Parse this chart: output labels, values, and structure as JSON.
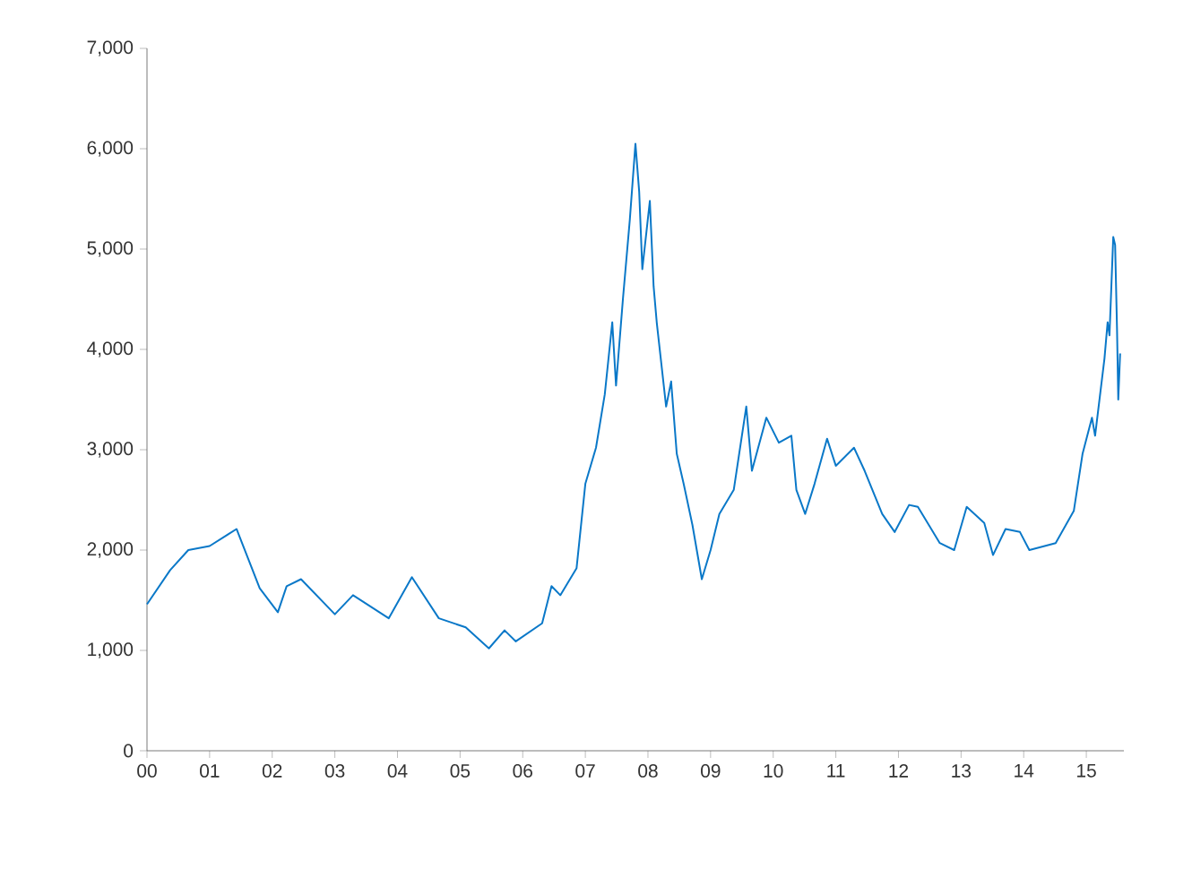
{
  "chart_data": {
    "type": "line",
    "x": [
      0,
      0.37,
      0.66,
      1.0,
      1.43,
      1.8,
      2.09,
      2.23,
      2.46,
      3.0,
      3.29,
      3.86,
      4.23,
      4.66,
      5.09,
      5.46,
      5.71,
      5.89,
      6.31,
      6.46,
      6.6,
      6.86,
      6.94,
      7.0,
      7.17,
      7.31,
      7.43,
      7.49,
      7.6,
      7.71,
      7.8,
      7.86,
      7.91,
      8.03,
      8.09,
      8.14,
      8.29,
      8.37,
      8.46,
      8.57,
      8.71,
      8.86,
      9.0,
      9.14,
      9.37,
      9.57,
      9.66,
      9.89,
      10.09,
      10.29,
      10.37,
      10.51,
      10.66,
      10.86,
      11.0,
      11.29,
      11.46,
      11.74,
      11.94,
      12.17,
      12.31,
      12.66,
      12.89,
      13.09,
      13.37,
      13.51,
      13.71,
      13.94,
      14.09,
      14.51,
      14.8,
      14.94,
      15.09,
      15.14,
      15.29,
      15.34,
      15.37,
      15.43,
      15.46,
      15.49,
      15.51,
      15.54
    ],
    "series": [
      {
        "color": "#0a78c8",
        "values": [
          1460,
          1800,
          2000,
          2040,
          2210,
          1620,
          1380,
          1640,
          1710,
          1360,
          1550,
          1320,
          1730,
          1320,
          1230,
          1020,
          1200,
          1090,
          1270,
          1640,
          1550,
          1820,
          2300,
          2660,
          3020,
          3550,
          4270,
          3640,
          4500,
          5290,
          6050,
          5570,
          4800,
          5480,
          4630,
          4270,
          3430,
          3680,
          2960,
          2660,
          2250,
          1710,
          2000,
          2360,
          2600,
          3430,
          2790,
          3320,
          3070,
          3140,
          2600,
          2360,
          2660,
          3110,
          2840,
          3020,
          2790,
          2360,
          2180,
          2450,
          2430,
          2070,
          2000,
          2430,
          2270,
          1950,
          2210,
          2180,
          2000,
          2070,
          2390,
          2960,
          3320,
          3140,
          3910,
          4270,
          4140,
          5120,
          5040,
          4210,
          3500,
          3960
        ]
      }
    ],
    "xlim": [
      0,
      15.6
    ],
    "ylim": [
      0,
      7000
    ],
    "xticks": [
      {
        "value": 0,
        "label": "00"
      },
      {
        "value": 1,
        "label": "01"
      },
      {
        "value": 2,
        "label": "02"
      },
      {
        "value": 3,
        "label": "03"
      },
      {
        "value": 4,
        "label": "04"
      },
      {
        "value": 5,
        "label": "05"
      },
      {
        "value": 6,
        "label": "06"
      },
      {
        "value": 7,
        "label": "07"
      },
      {
        "value": 8,
        "label": "08"
      },
      {
        "value": 9,
        "label": "09"
      },
      {
        "value": 10,
        "label": "10"
      },
      {
        "value": 11,
        "label": "11"
      },
      {
        "value": 12,
        "label": "12"
      },
      {
        "value": 13,
        "label": "13"
      },
      {
        "value": 14,
        "label": "14"
      },
      {
        "value": 15,
        "label": "15"
      }
    ],
    "yticks": [
      0,
      {
        "value": 1000,
        "label": "1,000"
      },
      {
        "value": 2000,
        "label": "2,000"
      },
      {
        "value": 3000,
        "label": "3,000"
      },
      {
        "value": 4000,
        "label": "4,000"
      },
      {
        "value": 5000,
        "label": "5,000"
      },
      {
        "value": 6000,
        "label": "6,000"
      },
      {
        "value": 7000,
        "label": "7,000"
      }
    ],
    "marker": "none",
    "line_style": "solid"
  }
}
